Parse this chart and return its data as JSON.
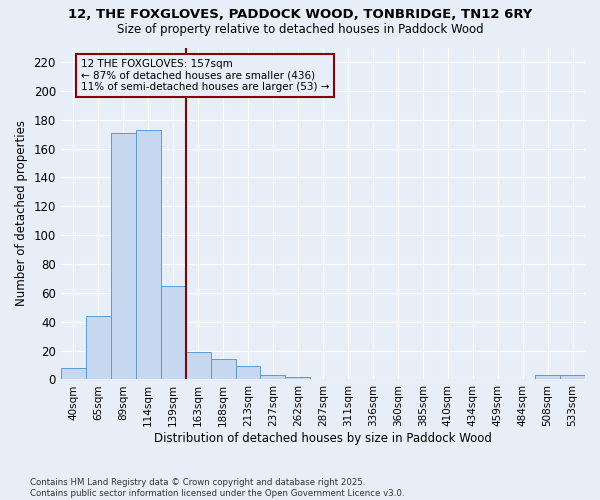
{
  "title_line1": "12, THE FOXGLOVES, PADDOCK WOOD, TONBRIDGE, TN12 6RY",
  "title_line2": "Size of property relative to detached houses in Paddock Wood",
  "xlabel": "Distribution of detached houses by size in Paddock Wood",
  "ylabel": "Number of detached properties",
  "categories": [
    "40sqm",
    "65sqm",
    "89sqm",
    "114sqm",
    "139sqm",
    "163sqm",
    "188sqm",
    "213sqm",
    "237sqm",
    "262sqm",
    "287sqm",
    "311sqm",
    "336sqm",
    "360sqm",
    "385sqm",
    "410sqm",
    "434sqm",
    "459sqm",
    "484sqm",
    "508sqm",
    "533sqm"
  ],
  "values": [
    8,
    44,
    171,
    173,
    65,
    19,
    14,
    9,
    3,
    2,
    0,
    0,
    0,
    0,
    0,
    0,
    0,
    0,
    0,
    3,
    3
  ],
  "bar_color": "#c5d8f0",
  "bar_edge_color": "#5b9bd5",
  "background_color": "#e8eef8",
  "grid_color": "#ffffff",
  "vline_color": "#8b0000",
  "annotation_text": "12 THE FOXGLOVES: 157sqm\n← 87% of detached houses are smaller (436)\n11% of semi-detached houses are larger (53) →",
  "annotation_box_edgecolor": "#8b0000",
  "ylim": [
    0,
    230
  ],
  "yticks": [
    0,
    20,
    40,
    60,
    80,
    100,
    120,
    140,
    160,
    180,
    200,
    220
  ],
  "footnote": "Contains HM Land Registry data © Crown copyright and database right 2025.\nContains public sector information licensed under the Open Government Licence v3.0.",
  "figsize": [
    6.0,
    5.0
  ],
  "dpi": 100
}
